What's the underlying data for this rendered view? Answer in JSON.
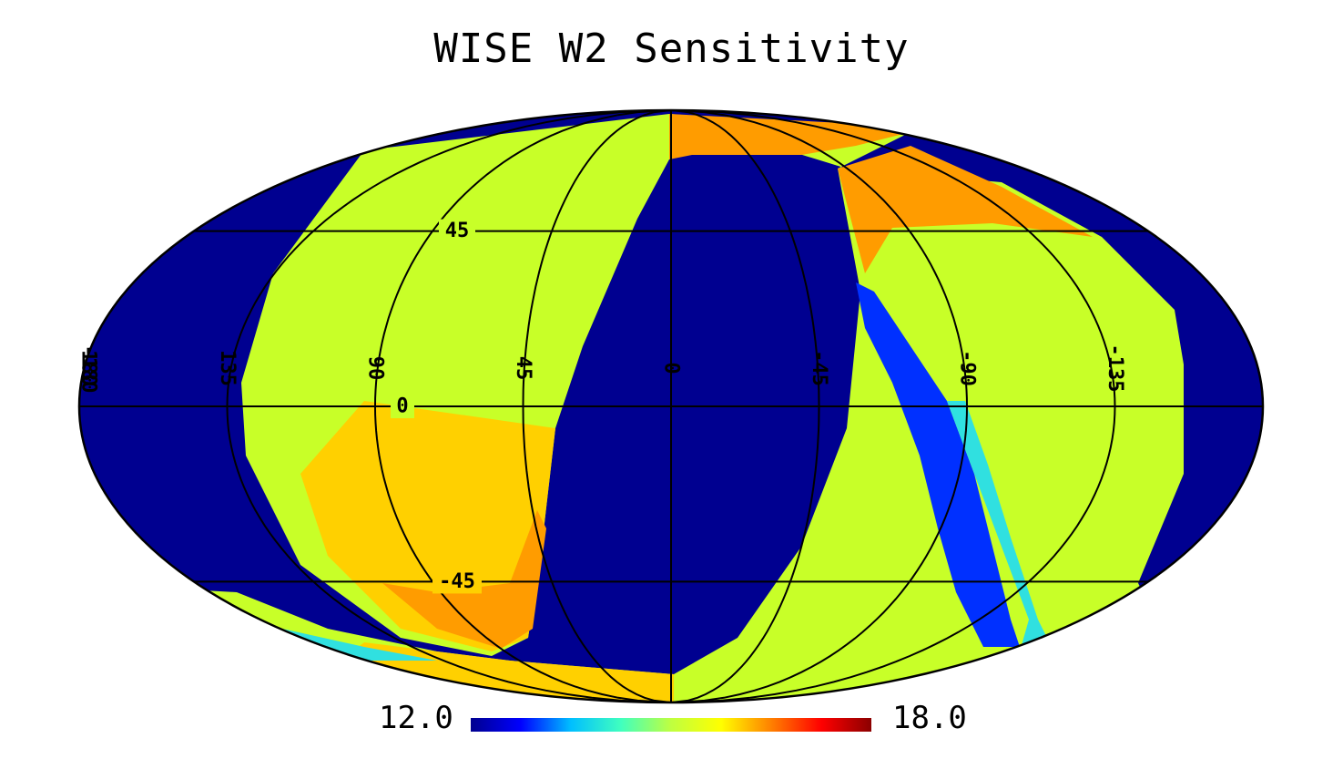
{
  "title": "WISE W2 Sensitivity",
  "colorbar": {
    "min_label": "12.0",
    "max_label": "18.0",
    "min": 12.0,
    "max": 18.0,
    "colors": [
      "#00008f",
      "#0000ff",
      "#00bfff",
      "#40ffbf",
      "#bfff40",
      "#ffff00",
      "#ff8000",
      "#ff0000",
      "#8b0000"
    ]
  },
  "projection": "mollweide",
  "graticule": {
    "longitudes": [
      180,
      135,
      90,
      45,
      0,
      -45,
      -90,
      -135,
      -180
    ],
    "latitudes": [
      45,
      0,
      -45
    ],
    "longitude_labels": [
      "180",
      "135",
      "90",
      "45",
      "0",
      "-45",
      "-90",
      "-135",
      "-180"
    ],
    "latitude_labels": [
      "45",
      "0",
      "-45"
    ]
  },
  "map_colors": {
    "no_data": "#000090",
    "baseline": "#c8ff28",
    "warm": "#ffd000",
    "hot": "#ff9c00",
    "cold_streak": "#0030ff",
    "cool_streak": "#30e0e0"
  }
}
